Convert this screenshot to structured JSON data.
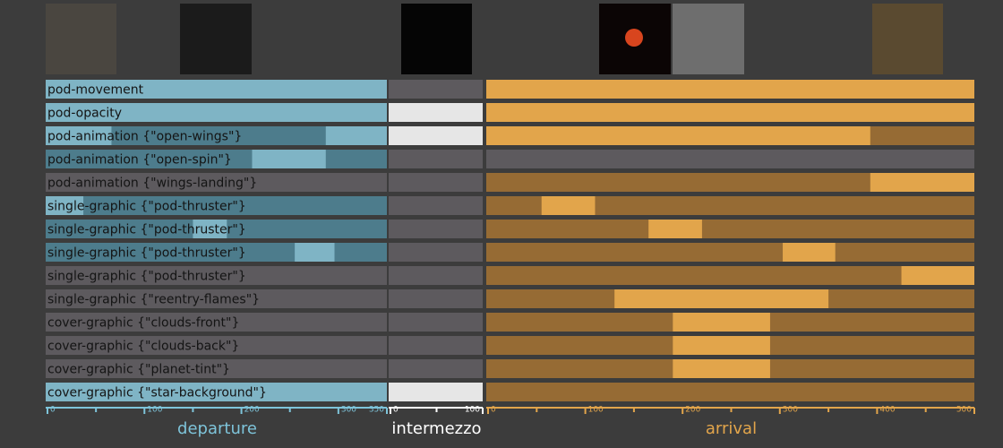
{
  "sections": [
    {
      "name": "departure",
      "max": 350,
      "ticks": [
        0,
        100,
        200,
        300,
        350
      ],
      "minor_ticks": [
        50,
        150,
        250
      ],
      "colors": {
        "active": "#7fb4c5",
        "dim": "#4d7c8c",
        "off": "#5d5a5e",
        "text": "#7ec4da"
      }
    },
    {
      "name": "intermezzo",
      "max": 100,
      "ticks": [
        0,
        100
      ],
      "minor_ticks": [
        50
      ],
      "colors": {
        "active": "#e6e6e6",
        "dim": "#5d5a5e",
        "off": "#5d5a5e",
        "text": "#ffffff"
      }
    },
    {
      "name": "arrival",
      "max": 500,
      "ticks": [
        0,
        100,
        200,
        300,
        400,
        500
      ],
      "minor_ticks": [
        50,
        150,
        250,
        350,
        450
      ],
      "colors": {
        "active": "#e2a54b",
        "dim": "#966b34",
        "off": "#5d5a5e",
        "text": "#e2a54b"
      }
    }
  ],
  "rows": [
    {
      "label": "pod-movement",
      "states": [
        {
          "base": "active",
          "active": []
        },
        {
          "base": "off",
          "active": []
        },
        {
          "base": "active",
          "active": []
        }
      ]
    },
    {
      "label": "pod-opacity",
      "states": [
        {
          "base": "active",
          "active": []
        },
        {
          "base": "active",
          "active": []
        },
        {
          "base": "active",
          "active": []
        }
      ]
    },
    {
      "label": "pod-animation {\"open-wings\"}",
      "states": [
        {
          "base": "dim",
          "active": [
            [
              0,
              66
            ],
            [
              287,
              350
            ]
          ]
        },
        {
          "base": "active",
          "active": []
        },
        {
          "base": "dim",
          "active": [
            [
              0,
              393
            ]
          ]
        }
      ]
    },
    {
      "label": "pod-animation {\"open-spin\"}",
      "states": [
        {
          "base": "dim",
          "active": [
            [
              211,
              287
            ]
          ]
        },
        {
          "base": "off",
          "active": []
        },
        {
          "base": "off",
          "active": []
        }
      ]
    },
    {
      "label": "pod-animation {\"wings-landing\"}",
      "states": [
        {
          "base": "off",
          "active": []
        },
        {
          "base": "off",
          "active": []
        },
        {
          "base": "dim",
          "active": [
            [
              393,
              500
            ]
          ]
        }
      ]
    },
    {
      "label": "single-graphic {\"pod-thruster\"}",
      "states": [
        {
          "base": "dim",
          "active": [
            [
              0,
              37
            ]
          ]
        },
        {
          "base": "off",
          "active": []
        },
        {
          "base": "dim",
          "active": [
            [
              55,
              110
            ]
          ]
        }
      ]
    },
    {
      "label": "single-graphic {\"pod-thruster\"}",
      "states": [
        {
          "base": "dim",
          "active": [
            [
              150,
              185
            ]
          ]
        },
        {
          "base": "off",
          "active": []
        },
        {
          "base": "dim",
          "active": [
            [
              165,
              220
            ]
          ]
        }
      ]
    },
    {
      "label": "single-graphic {\"pod-thruster\"}",
      "states": [
        {
          "base": "dim",
          "active": [
            [
              255,
              296
            ]
          ]
        },
        {
          "base": "off",
          "active": []
        },
        {
          "base": "dim",
          "active": [
            [
              303,
              357
            ]
          ]
        }
      ]
    },
    {
      "label": "single-graphic {\"pod-thruster\"}",
      "states": [
        {
          "base": "off",
          "active": []
        },
        {
          "base": "off",
          "active": []
        },
        {
          "base": "dim",
          "active": [
            [
              425,
              500
            ]
          ]
        }
      ]
    },
    {
      "label": "single-graphic {\"reentry-flames\"}",
      "states": [
        {
          "base": "off",
          "active": []
        },
        {
          "base": "off",
          "active": []
        },
        {
          "base": "dim",
          "active": [
            [
              130,
              350
            ]
          ]
        }
      ]
    },
    {
      "label": "cover-graphic {\"clouds-front\"}",
      "states": [
        {
          "base": "off",
          "active": []
        },
        {
          "base": "off",
          "active": []
        },
        {
          "base": "dim",
          "active": [
            [
              190,
              290
            ]
          ]
        }
      ]
    },
    {
      "label": "cover-graphic {\"clouds-back\"}",
      "states": [
        {
          "base": "off",
          "active": []
        },
        {
          "base": "off",
          "active": []
        },
        {
          "base": "dim",
          "active": [
            [
              190,
              290
            ]
          ]
        }
      ]
    },
    {
      "label": "cover-graphic {\"planet-tint\"}",
      "states": [
        {
          "base": "off",
          "active": []
        },
        {
          "base": "off",
          "active": []
        },
        {
          "base": "dim",
          "active": [
            [
              190,
              290
            ]
          ]
        }
      ]
    },
    {
      "label": "cover-graphic {\"star-background\"}",
      "states": [
        {
          "base": "active",
          "active": []
        },
        {
          "base": "active",
          "active": []
        },
        {
          "base": "dim",
          "active": []
        }
      ]
    }
  ]
}
